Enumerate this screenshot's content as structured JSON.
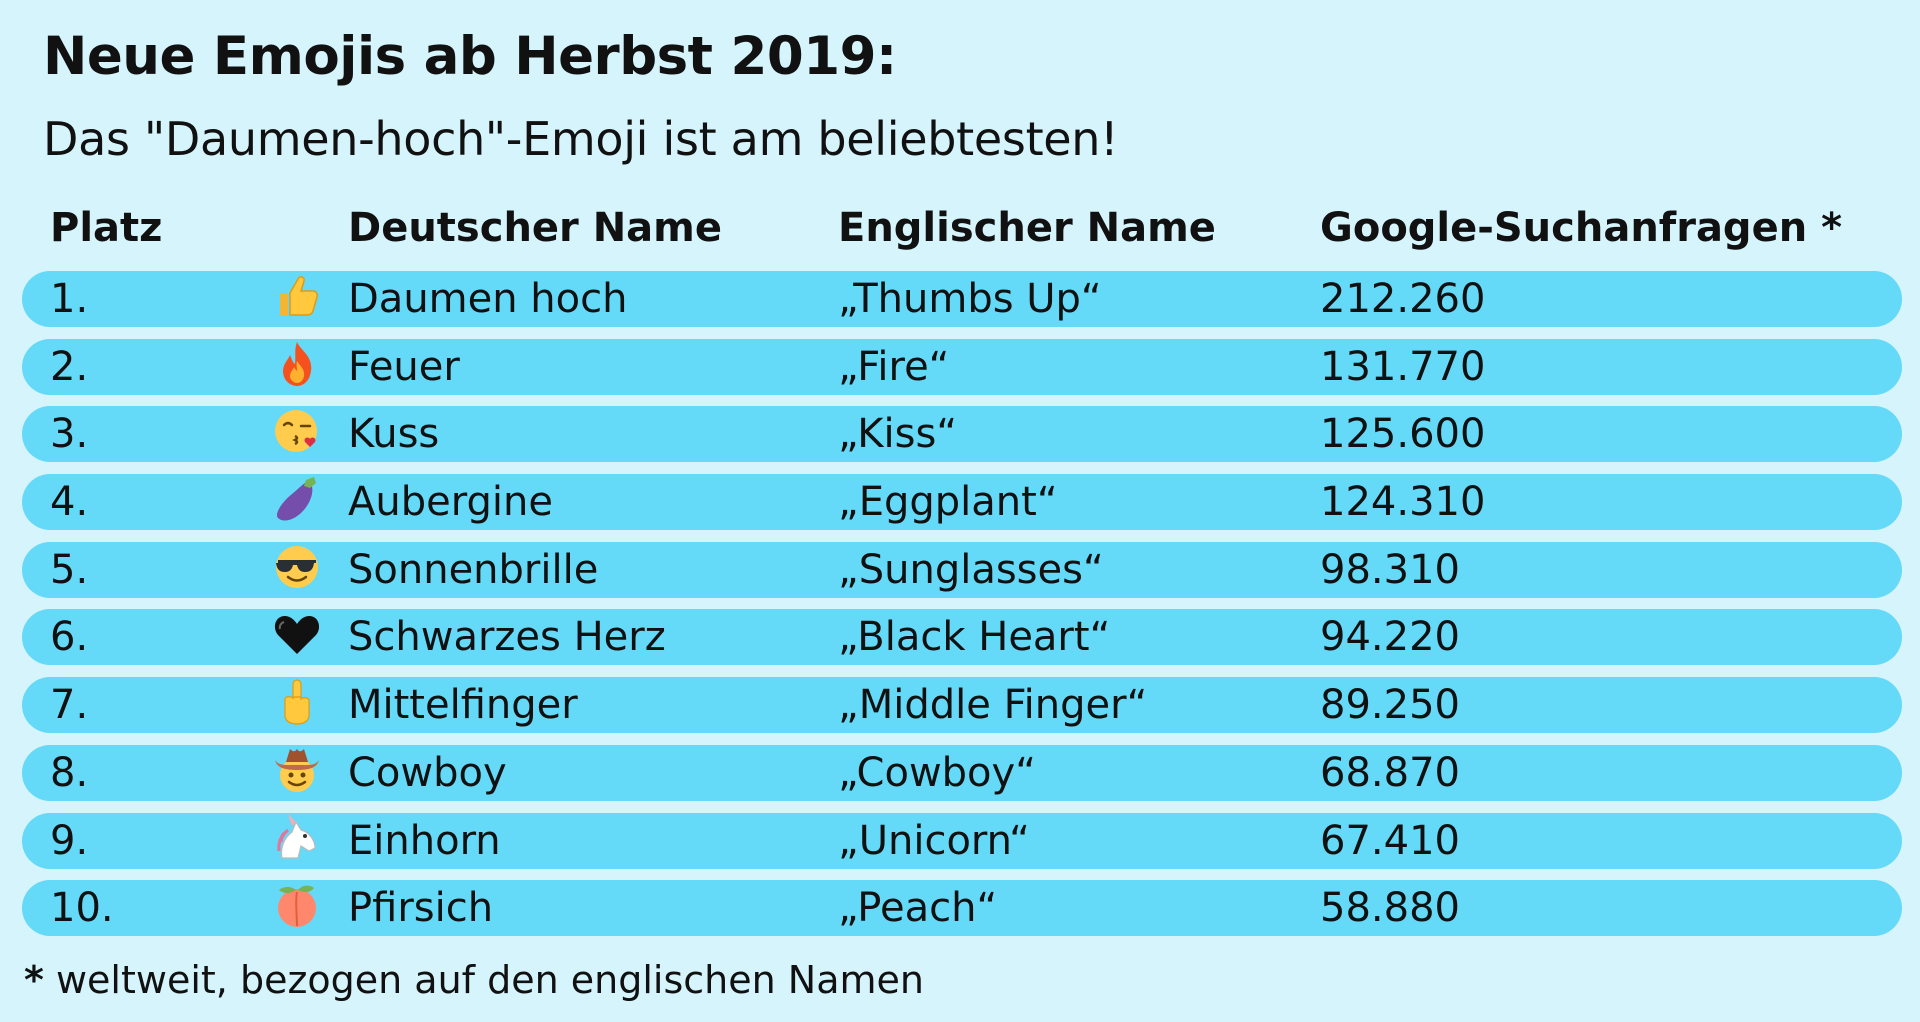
{
  "title": "Neue Emojis ab Herbst 2019:",
  "subtitle": "Das \"Daumen-hoch\"-Emoji ist am beliebtesten!",
  "footnote_marker": "*",
  "footnote_text": " weltweit, bezogen auf den englischen Namen",
  "chart_data": {
    "type": "table",
    "title": "Neue Emojis ab Herbst 2019:",
    "subtitle": "Das \"Daumen-hoch\"-Emoji ist am beliebtesten!",
    "columns": [
      "Platz",
      "Deutscher Name",
      "Englischer Name",
      "Google-Suchanfragen *"
    ],
    "rows": [
      {
        "rank": "1.",
        "icon": "thumbs-up-icon",
        "de": "Daumen hoch",
        "en": "„Thumbs Up“",
        "value_label": "212.260",
        "value": 212260
      },
      {
        "rank": "2.",
        "icon": "fire-icon",
        "de": "Feuer",
        "en": "„Fire“",
        "value_label": "131.770",
        "value": 131770
      },
      {
        "rank": "3.",
        "icon": "kiss-face-icon",
        "de": "Kuss",
        "en": "„Kiss“",
        "value_label": "125.600",
        "value": 125600
      },
      {
        "rank": "4.",
        "icon": "eggplant-icon",
        "de": "Aubergine",
        "en": "„Eggplant“",
        "value_label": "124.310",
        "value": 124310
      },
      {
        "rank": "5.",
        "icon": "sunglasses-face-icon",
        "de": "Sonnenbrille",
        "en": "„Sunglasses“",
        "value_label": "98.310",
        "value": 98310
      },
      {
        "rank": "6.",
        "icon": "black-heart-icon",
        "de": "Schwarzes Herz",
        "en": "„Black Heart“",
        "value_label": "94.220",
        "value": 94220
      },
      {
        "rank": "7.",
        "icon": "middle-finger-icon",
        "de": "Mittelfinger",
        "en": "„Middle Finger“",
        "value_label": "89.250",
        "value": 89250
      },
      {
        "rank": "8.",
        "icon": "cowboy-face-icon",
        "de": "Cowboy",
        "en": "„Cowboy“",
        "value_label": "68.870",
        "value": 68870
      },
      {
        "rank": "9.",
        "icon": "unicorn-icon",
        "de": "Einhorn",
        "en": "„Unicorn“",
        "value_label": "67.410",
        "value": 67410
      },
      {
        "rank": "10.",
        "icon": "peach-icon",
        "de": "Pfirsich",
        "en": "„Peach“",
        "value_label": "58.880",
        "value": 58880
      }
    ]
  },
  "colors": {
    "background": "#d5f4fc",
    "row": "#65d9f8",
    "text": "#111111"
  }
}
